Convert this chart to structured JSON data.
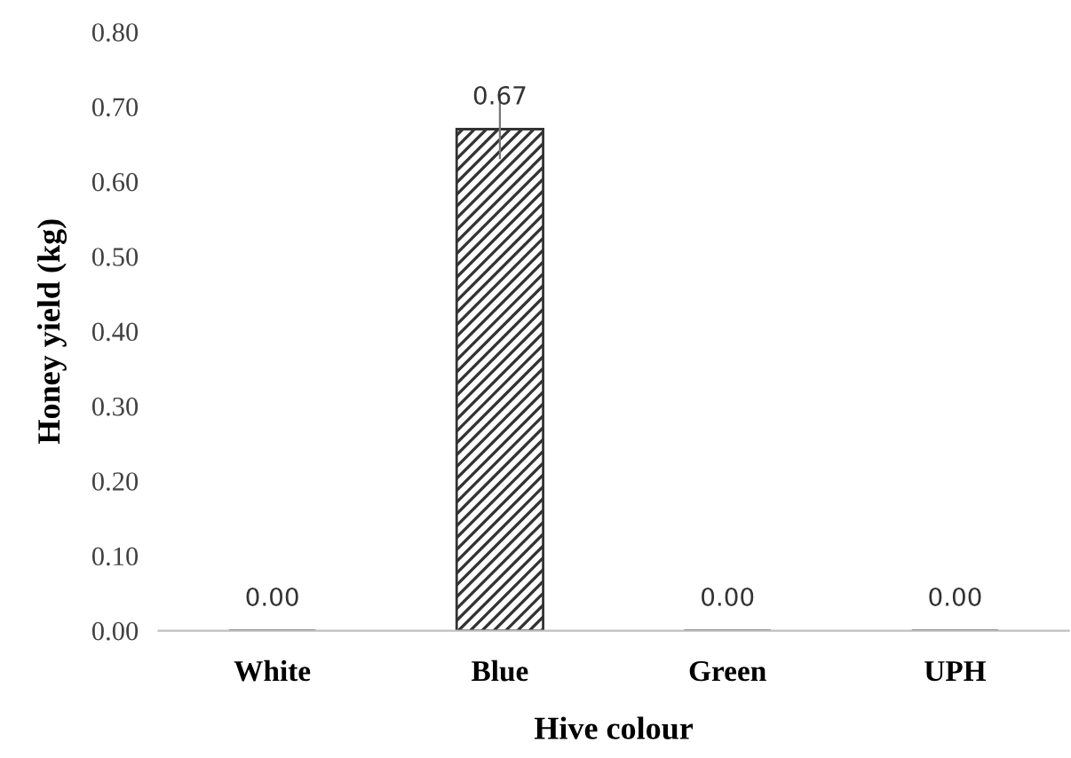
{
  "chart_data": {
    "type": "bar",
    "xlabel": "Hive colour",
    "ylabel": "Honey yield (kg)",
    "categories": [
      "White",
      "Blue",
      "Green",
      "UPH"
    ],
    "values": [
      0,
      0.67,
      0,
      0
    ],
    "errors": [
      null,
      0.04,
      null,
      null
    ],
    "value_labels": [
      "0.00",
      "0.67",
      "0.00",
      "0.00"
    ],
    "color": "#333333",
    "ylim": [
      0,
      0.8
    ],
    "yticks": [
      {
        "value": 0,
        "label": "0.00"
      },
      {
        "value": 0.1,
        "label": "0.10"
      },
      {
        "value": 0.2,
        "label": "0.20"
      },
      {
        "value": 0.3,
        "label": "0.30"
      },
      {
        "value": 0.4,
        "label": "0.40"
      },
      {
        "value": 0.5,
        "label": "0.50"
      },
      {
        "value": 0.6,
        "label": "0.60"
      },
      {
        "value": 0.7,
        "label": "0.70"
      },
      {
        "value": 0.8,
        "label": "0.80"
      }
    ],
    "grid": false,
    "legend": false
  }
}
